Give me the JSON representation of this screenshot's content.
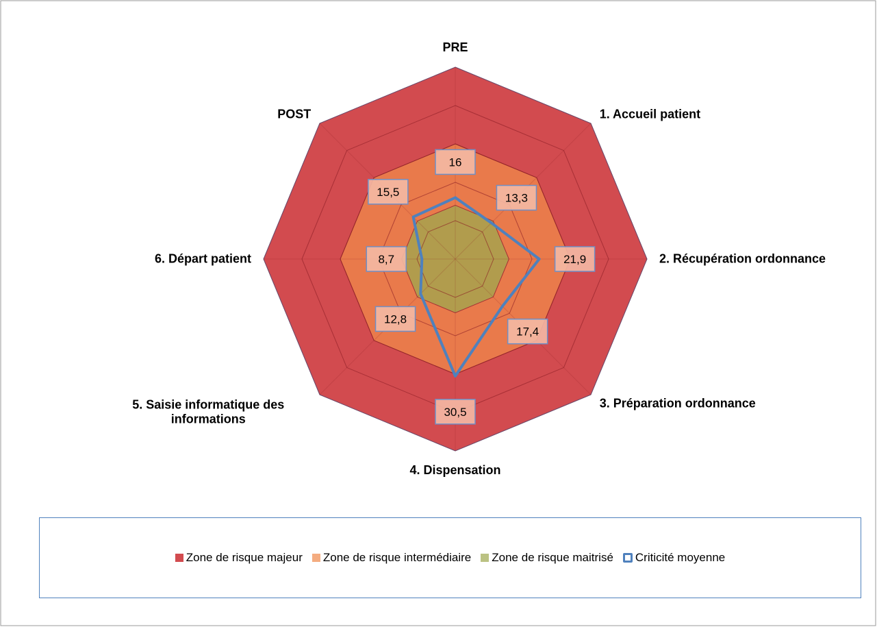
{
  "chart_data": {
    "type": "radar",
    "categories": [
      "PRE",
      "1. Accueil patient",
      "2. Récupération ordonnance",
      "3. Préparation ordonnance",
      "4. Dispensation",
      "5. Saisie informatique des informations",
      "6. Départ patient",
      "POST"
    ],
    "ylim": [
      0,
      50
    ],
    "yticks": [
      0,
      10,
      20,
      30,
      40,
      50
    ],
    "grid": true,
    "legend": "bottom",
    "series": [
      {
        "name": "Zone de risque majeur",
        "color": "#d24b4f",
        "style": "area",
        "values": [
          50,
          50,
          50,
          50,
          50,
          50,
          50,
          50
        ]
      },
      {
        "name": "Zone de  risque intermédiaire",
        "color": "#f0894a",
        "style": "area",
        "values": [
          30,
          30,
          30,
          30,
          30,
          30,
          30,
          30
        ]
      },
      {
        "name": "Zone de risque maitrisé",
        "color": "#9ea84e",
        "style": "area",
        "values": [
          14,
          14,
          14,
          14,
          14,
          14,
          14,
          14
        ]
      },
      {
        "name": "Criticité moyenne",
        "color": "#4f81bd",
        "style": "line",
        "labels": true,
        "values": [
          16,
          13.3,
          21.9,
          17.4,
          30.5,
          12.8,
          8.7,
          15.5
        ],
        "value_labels": [
          "16",
          "13,3",
          "21,9",
          "17,4",
          "30,5",
          "12,8",
          "8,7",
          "15,5"
        ]
      }
    ]
  }
}
